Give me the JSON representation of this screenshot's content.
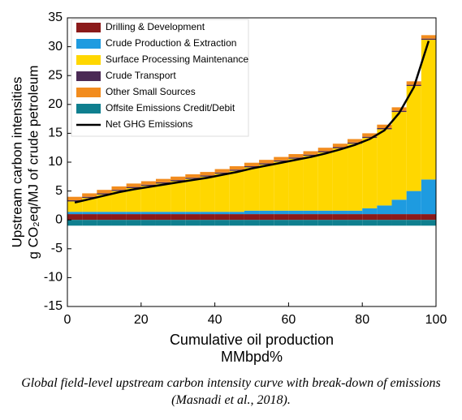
{
  "chart_data": {
    "type": "stacked_bar",
    "y_label": [
      "Upstream carbon intensities",
      "g CO₂eq/MJ of crude petroleum"
    ],
    "x_label": [
      "Cumulative oil production",
      "MMbpd%"
    ],
    "caption": "Global field-level upstream carbon intensity curve with break-down of emissions (Masnadi et al., 2018).",
    "x": [
      2,
      6,
      10,
      14,
      18,
      22,
      26,
      30,
      34,
      38,
      42,
      46,
      50,
      54,
      58,
      62,
      66,
      70,
      74,
      78,
      82,
      86,
      90,
      94,
      98
    ],
    "series": [
      {
        "name": "Drilling & Development",
        "color": "#8b1a1a",
        "values": [
          1,
          1,
          1,
          1,
          1,
          1,
          1,
          1,
          1,
          1,
          1,
          1,
          1,
          1,
          1,
          1,
          1,
          1,
          1,
          1,
          1,
          1,
          1,
          1,
          1
        ]
      },
      {
        "name": "Crude Production & Extraction",
        "color": "#1e9be0",
        "values": [
          0.4,
          0.4,
          0.4,
          0.4,
          0.4,
          0.4,
          0.4,
          0.4,
          0.4,
          0.4,
          0.4,
          0.4,
          0.6,
          0.6,
          0.6,
          0.6,
          0.6,
          0.6,
          0.6,
          0.6,
          1,
          1.5,
          2.5,
          4,
          6
        ]
      },
      {
        "name": "Surface Processing Maintenance",
        "color": "#ffd700",
        "values": [
          1.8,
          2.4,
          3,
          3.6,
          4.1,
          4.5,
          4.9,
          5.3,
          5.7,
          6.1,
          6.6,
          7.1,
          7.5,
          8,
          8.5,
          9,
          9.5,
          10.1,
          10.8,
          11.6,
          12.2,
          13.2,
          15.2,
          18.2,
          24.2
        ]
      },
      {
        "name": "Crude Transport",
        "color": "#4b2a55",
        "values": [
          0.2,
          0.2,
          0.2,
          0.2,
          0.2,
          0.2,
          0.2,
          0.2,
          0.2,
          0.2,
          0.2,
          0.2,
          0.2,
          0.2,
          0.2,
          0.2,
          0.2,
          0.2,
          0.2,
          0.2,
          0.2,
          0.2,
          0.2,
          0.2,
          0.2
        ]
      },
      {
        "name": "Other Small Sources",
        "color": "#f28c1e",
        "values": [
          0.6,
          0.6,
          0.6,
          0.6,
          0.6,
          0.6,
          0.6,
          0.6,
          0.6,
          0.6,
          0.6,
          0.6,
          0.6,
          0.6,
          0.6,
          0.6,
          0.6,
          0.6,
          0.6,
          0.6,
          0.6,
          0.6,
          0.6,
          0.6,
          0.6
        ]
      },
      {
        "name": "Offsite Emissions Credit/Debit",
        "color": "#0f7f8f",
        "values": [
          -1,
          -1,
          -1,
          -1,
          -1,
          -1,
          -1,
          -1,
          -1,
          -1,
          -1,
          -1,
          -1,
          -1,
          -1,
          -1,
          -1,
          -1,
          -1,
          -1,
          -1,
          -1,
          -1,
          -1,
          -1
        ]
      }
    ],
    "net_line": {
      "name": "Net GHG Emissions",
      "color": "#000000",
      "values": [
        3,
        3.6,
        4.2,
        4.8,
        5.3,
        5.7,
        6.1,
        6.5,
        6.9,
        7.3,
        7.8,
        8.3,
        8.9,
        9.4,
        9.9,
        10.4,
        10.9,
        11.5,
        12.2,
        13,
        14,
        15.5,
        18.5,
        23,
        31
      ]
    },
    "xlim": [
      0,
      100
    ],
    "xticks": [
      0,
      20,
      40,
      60,
      80,
      100
    ],
    "ylim": [
      -15,
      35
    ],
    "yticks": [
      -15,
      -10,
      -5,
      0,
      5,
      10,
      15,
      20,
      25,
      30,
      35
    ]
  }
}
